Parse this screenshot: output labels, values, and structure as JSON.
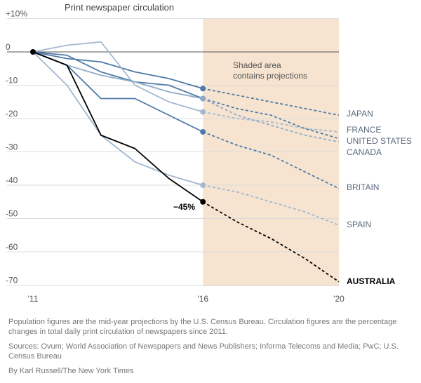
{
  "chart_data": {
    "type": "line",
    "title": "Print newspaper circulation",
    "xlabel": "",
    "ylabel": "",
    "x_ticks": [
      "'11",
      "'16",
      "'20"
    ],
    "y_ticks": [
      "+10%",
      "0",
      "-10",
      "-20",
      "-30",
      "-40",
      "-50",
      "-60",
      "-70"
    ],
    "xlim": [
      2011,
      2020
    ],
    "ylim": [
      -72,
      10
    ],
    "grid": true,
    "projection_start": 2016,
    "shaded_label": "Shaded area contains projections",
    "shaded_label_lines": [
      "Shaded area",
      "contains projections"
    ],
    "callout": "−45%",
    "series": [
      {
        "name": "JAPAN",
        "color": "#4e7aa8",
        "x": [
          2011,
          2012,
          2013,
          2014,
          2015,
          2016,
          2017,
          2018,
          2019,
          2020
        ],
        "y": [
          0,
          -2,
          -3,
          -6,
          -8,
          -11,
          -13,
          -15,
          -17,
          -19
        ]
      },
      {
        "name": "FRANCE",
        "color": "#a3b8cf",
        "x": [
          2011,
          2012,
          2013,
          2014,
          2015,
          2016,
          2017,
          2018,
          2019,
          2020
        ],
        "y": [
          0,
          2,
          3,
          -10,
          -15,
          -18,
          -20,
          -21,
          -23,
          -24
        ]
      },
      {
        "name": "UNITED STATES",
        "color": "#4e7aa8",
        "x": [
          2011,
          2012,
          2013,
          2014,
          2015,
          2016,
          2017,
          2018,
          2019,
          2020
        ],
        "y": [
          0,
          -1,
          -6,
          -9,
          -10,
          -14,
          -17,
          -19,
          -23,
          -26
        ]
      },
      {
        "name": "CANADA",
        "color": "#8faac8",
        "x": [
          2011,
          2012,
          2013,
          2014,
          2015,
          2016,
          2017,
          2018,
          2019,
          2020
        ],
        "y": [
          0,
          -4,
          -7,
          -9,
          -12,
          -14,
          -19,
          -22,
          -25,
          -27
        ]
      },
      {
        "name": "BRITAIN",
        "color": "#4e7aa8",
        "x": [
          2011,
          2012,
          2013,
          2014,
          2015,
          2016,
          2017,
          2018,
          2019,
          2020
        ],
        "y": [
          0,
          -4,
          -14,
          -14,
          -19,
          -24,
          -28,
          -31,
          -36,
          -41
        ]
      },
      {
        "name": "SPAIN",
        "color": "#a3b8cf",
        "x": [
          2011,
          2012,
          2013,
          2014,
          2015,
          2016,
          2017,
          2018,
          2019,
          2020
        ],
        "y": [
          0,
          -10,
          -25,
          -33,
          -37,
          -40,
          -42,
          -45,
          -48,
          -52
        ]
      },
      {
        "name": "AUSTRALIA",
        "color": "#000000",
        "x": [
          2011,
          2012,
          2013,
          2014,
          2015,
          2016,
          2017,
          2018,
          2019,
          2020
        ],
        "y": [
          0,
          -4,
          -25,
          -29,
          -38,
          -45,
          -51,
          -56,
          -62,
          -69
        ]
      }
    ]
  },
  "notes": {
    "population": "Population figures are the mid-year projections by the U.S. Census Bureau. Circulation figures are the percentage changes in total daily print circulation of newspapers since 2011.",
    "sources": "Sources: Ovum; World Association of Newspapers and News Publishers; Informa Telecoms and Media; PwC; U.S. Census Bureau",
    "byline": "By Karl Russell/The New York Times"
  }
}
